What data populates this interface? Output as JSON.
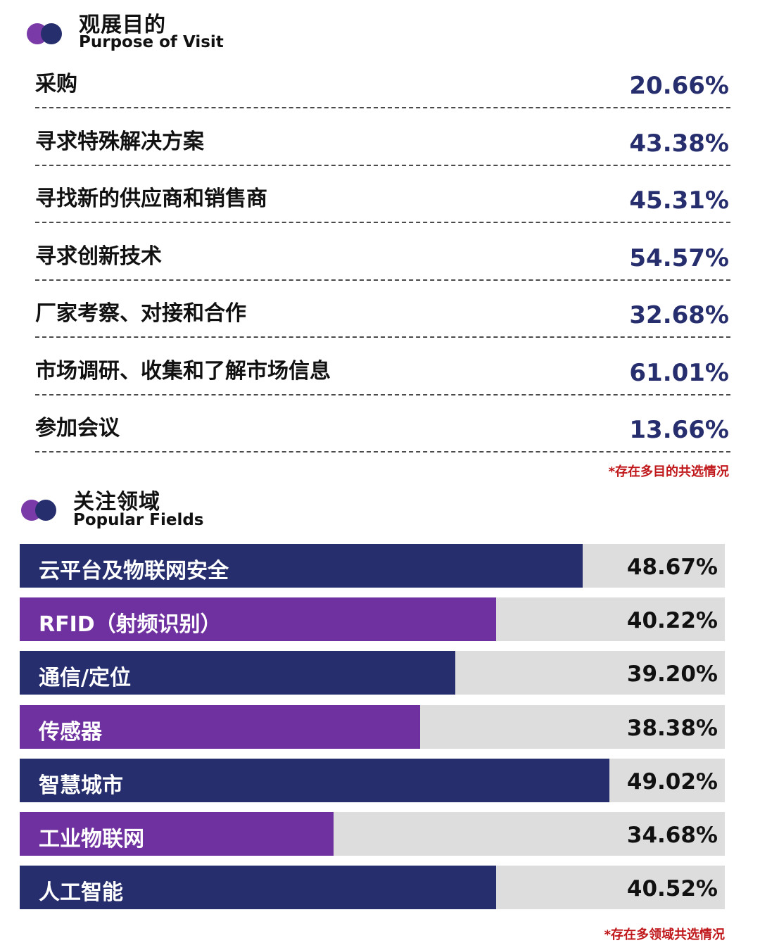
{
  "purpose": {
    "title_cn": "观展目的",
    "title_en": "Purpose of Visit",
    "note": "*存在多目的共选情况"
  },
  "fields": {
    "title_cn": "关注领域",
    "title_en": "Popular Fields",
    "note": "*存在多领域共选情况"
  },
  "colors": {
    "navy": "#262e6e",
    "purple": "#6f30a0",
    "track": "#dddddd",
    "note": "#c0171b",
    "dot_purple": "#7a3aa8",
    "dot_navy": "#262e6e"
  },
  "chart_data": [
    {
      "type": "table",
      "title": "观展目的",
      "subtitle": "Purpose of Visit",
      "categories": [
        "采购",
        "寻求特殊解决方案",
        "寻找新的供应商和销售商",
        "寻求创新技术",
        "厂家考察、对接和合作",
        "市场调研、收集和了解市场信息",
        "参加会议"
      ],
      "values": [
        20.66,
        43.38,
        45.31,
        54.57,
        32.68,
        61.01,
        13.66
      ],
      "value_labels": [
        "20.66%",
        "43.38%",
        "45.31%",
        "54.57%",
        "32.68%",
        "61.01%",
        "13.66%"
      ],
      "annotation": "*存在多目的共选情况"
    },
    {
      "type": "bar",
      "orientation": "horizontal",
      "title": "关注领域",
      "subtitle": "Popular Fields",
      "categories": [
        "云平台及物联网安全",
        "RFID（射频识别）",
        "通信/定位",
        "传感器",
        "智慧城市",
        "工业物联网",
        "人工智能"
      ],
      "values": [
        48.67,
        40.22,
        39.2,
        38.38,
        49.02,
        34.68,
        40.52
      ],
      "value_labels": [
        "48.67%",
        "40.22%",
        "39.20%",
        "38.38%",
        "49.02%",
        "34.68%",
        "40.52%"
      ],
      "fill_fractions": [
        0.798,
        0.676,
        0.618,
        0.568,
        0.836,
        0.445,
        0.676
      ],
      "bar_colors": [
        "#262e6e",
        "#6f30a0",
        "#262e6e",
        "#6f30a0",
        "#262e6e",
        "#6f30a0",
        "#262e6e"
      ],
      "annotation": "*存在多领域共选情况"
    }
  ]
}
